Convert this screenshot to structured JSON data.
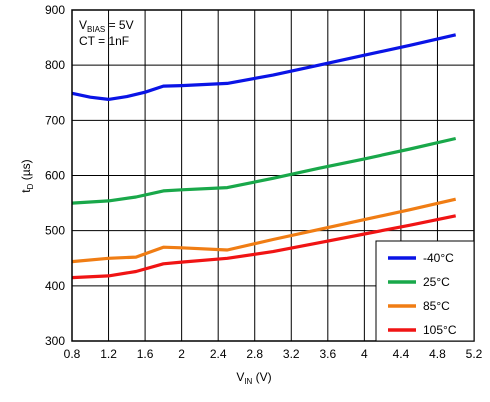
{
  "chart_data": {
    "type": "line",
    "xlabel": {
      "main": "V",
      "sub": "IN",
      "unit": " (V)"
    },
    "ylabel": {
      "main": "t",
      "sub": "D",
      "unit": " (µs)"
    },
    "xlim": [
      0.8,
      5.2
    ],
    "ylim": [
      300,
      900
    ],
    "xticks": [
      "0.8",
      "1.2",
      "1.6",
      "2",
      "2.4",
      "2.8",
      "3.2",
      "3.6",
      "4",
      "4.4",
      "4.8",
      "5.2"
    ],
    "yticks": [
      "300",
      "400",
      "500",
      "600",
      "700",
      "800",
      "900"
    ],
    "grid": true,
    "legend_position": "bottom-right",
    "annotation": {
      "line1": {
        "main": "V",
        "sub": "BIAS",
        "rest": " = 5V"
      },
      "line2": "CT = 1nF"
    },
    "series": [
      {
        "name": "-40°C",
        "color": "#0a14e6",
        "x": [
          0.8,
          1.0,
          1.2,
          1.4,
          1.6,
          1.8,
          2.0,
          2.5,
          3.0,
          3.5,
          4.0,
          4.5,
          5.0
        ],
        "y": [
          749,
          742,
          738,
          743,
          751,
          762,
          763,
          767,
          782,
          800,
          818,
          836,
          855
        ]
      },
      {
        "name": "25°C",
        "color": "#19a84a",
        "x": [
          0.8,
          1.2,
          1.5,
          1.8,
          2.0,
          2.5,
          3.0,
          3.5,
          4.0,
          4.5,
          5.0
        ],
        "y": [
          550,
          554,
          561,
          572,
          574,
          578,
          595,
          613,
          630,
          648,
          667
        ]
      },
      {
        "name": "85°C",
        "color": "#f07d14",
        "x": [
          0.8,
          1.2,
          1.5,
          1.8,
          2.0,
          2.5,
          3.0,
          3.5,
          4.0,
          4.5,
          5.0
        ],
        "y": [
          444,
          450,
          452,
          470,
          469,
          465,
          484,
          502,
          520,
          538,
          557
        ]
      },
      {
        "name": "105°C",
        "color": "#f01414",
        "x": [
          0.8,
          1.2,
          1.5,
          1.8,
          2.0,
          2.5,
          3.0,
          3.5,
          4.0,
          4.5,
          5.0
        ],
        "y": [
          415,
          418,
          426,
          440,
          443,
          450,
          462,
          478,
          494,
          510,
          527
        ]
      }
    ]
  }
}
